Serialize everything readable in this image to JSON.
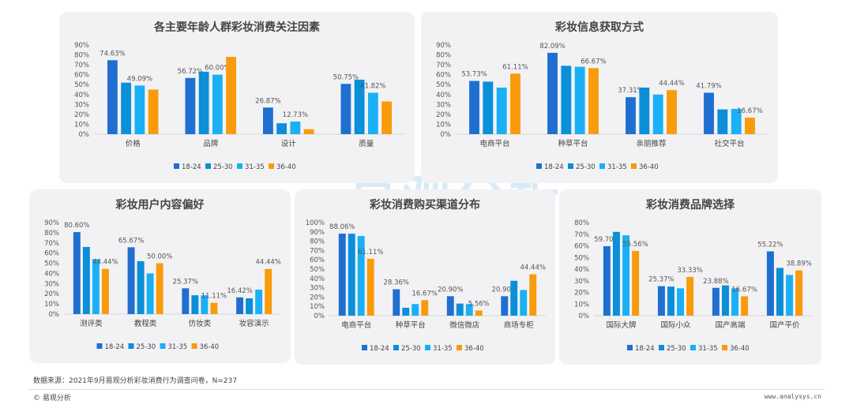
{
  "legend": [
    "18-24",
    "25-30",
    "31-35",
    "36-40"
  ],
  "colors": {
    "18-24": "#1f6fd0",
    "25-30": "#0a8fd8",
    "31-35": "#1ab0f5",
    "36-40": "#f99b0c"
  },
  "watermark": "易观分析",
  "footer": {
    "source": "数据来源：2021年9月易观分析彩妆消费行为调查问卷，N=237",
    "logo": "© 易观分析",
    "url": "www.analysys.cn"
  },
  "chart_data": [
    {
      "type": "bar",
      "title": "各主要年龄人群彩妆消费关注因素",
      "categories": [
        "价格",
        "品牌",
        "设计",
        "质量"
      ],
      "ylim": [
        0,
        90
      ],
      "yticks": [
        0,
        10,
        20,
        30,
        40,
        50,
        60,
        70,
        80,
        90
      ],
      "label_series": [
        0,
        2
      ],
      "series": [
        {
          "name": "18-24",
          "values": [
            74.63,
            56.72,
            26.87,
            50.75
          ]
        },
        {
          "name": "25-30",
          "values": [
            52,
            63,
            11,
            55
          ]
        },
        {
          "name": "31-35",
          "values": [
            49.09,
            60.0,
            12.73,
            41.82
          ]
        },
        {
          "name": "36-40",
          "values": [
            45,
            78,
            5,
            33
          ]
        }
      ]
    },
    {
      "type": "bar",
      "title": "彩妆信息获取方式",
      "categories": [
        "电商平台",
        "种草平台",
        "亲朋推荐",
        "社交平台"
      ],
      "ylim": [
        0,
        90
      ],
      "yticks": [
        0,
        10,
        20,
        30,
        40,
        50,
        60,
        70,
        80,
        90
      ],
      "label_series": [
        0,
        3
      ],
      "series": [
        {
          "name": "18-24",
          "values": [
            53.73,
            82.09,
            37.31,
            41.79
          ]
        },
        {
          "name": "25-30",
          "values": [
            53,
            69,
            47,
            25
          ]
        },
        {
          "name": "31-35",
          "values": [
            47,
            68,
            40,
            25.5
          ]
        },
        {
          "name": "36-40",
          "values": [
            61.11,
            66.67,
            44.44,
            16.67
          ]
        }
      ]
    },
    {
      "type": "bar",
      "title": "彩妆用户内容偏好",
      "categories": [
        "测评类",
        "教程类",
        "仿妆类",
        "妆容演示"
      ],
      "ylim": [
        0,
        90
      ],
      "yticks": [
        0,
        10,
        20,
        30,
        40,
        50,
        60,
        70,
        80,
        90
      ],
      "label_series": [
        0,
        3
      ],
      "series": [
        {
          "name": "18-24",
          "values": [
            80.6,
            65.67,
            25.37,
            16.42
          ]
        },
        {
          "name": "25-30",
          "values": [
            66,
            52,
            18.5,
            15.5
          ]
        },
        {
          "name": "31-35",
          "values": [
            54,
            40,
            18.5,
            24
          ]
        },
        {
          "name": "36-40",
          "values": [
            44.44,
            50.0,
            11.11,
            44.44
          ]
        }
      ]
    },
    {
      "type": "bar",
      "title": "彩妆消费购买渠道分布",
      "categories": [
        "电商平台",
        "种草平台",
        "微信微店",
        "商场专柜"
      ],
      "ylim": [
        0,
        100
      ],
      "yticks": [
        0,
        10,
        20,
        30,
        40,
        50,
        60,
        70,
        80,
        90,
        100
      ],
      "label_series": [
        0,
        3
      ],
      "series": [
        {
          "name": "18-24",
          "values": [
            88.06,
            28.36,
            20.9,
            20.9
          ]
        },
        {
          "name": "25-30",
          "values": [
            88,
            8.5,
            13,
            37.5
          ]
        },
        {
          "name": "31-35",
          "values": [
            85.5,
            12.5,
            12.5,
            27.5
          ]
        },
        {
          "name": "36-40",
          "values": [
            61.11,
            16.67,
            5.56,
            44.44
          ]
        }
      ]
    },
    {
      "type": "bar",
      "title": "彩妆消费品牌选择",
      "categories": [
        "国际大牌",
        "国际小众",
        "国产高端",
        "国产平价"
      ],
      "ylim": [
        0,
        80
      ],
      "yticks": [
        0,
        10,
        20,
        30,
        40,
        50,
        60,
        70,
        80
      ],
      "label_series": [
        0,
        3
      ],
      "series": [
        {
          "name": "18-24",
          "values": [
            59.7,
            25.37,
            23.88,
            55.22
          ]
        },
        {
          "name": "25-30",
          "values": [
            72,
            25,
            26,
            41
          ]
        },
        {
          "name": "31-35",
          "values": [
            69,
            23.5,
            23.5,
            35
          ]
        },
        {
          "name": "36-40",
          "values": [
            55.56,
            33.33,
            16.67,
            38.89
          ]
        }
      ]
    }
  ]
}
